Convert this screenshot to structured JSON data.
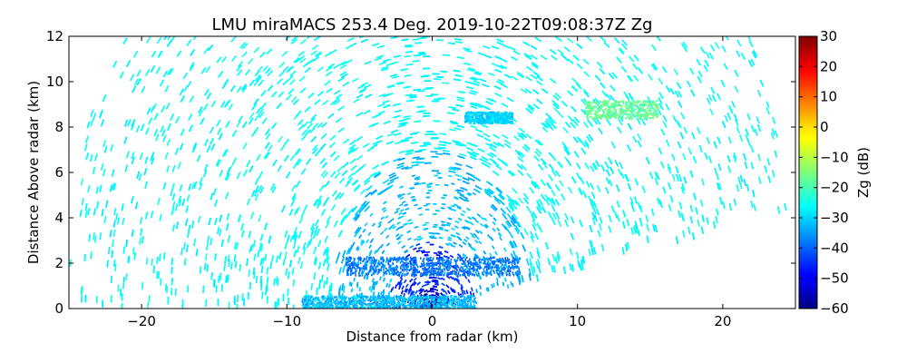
{
  "chart_data": {
    "type": "heatmap",
    "title": "LMU miraMACS 253.4 Deg. 2019-10-22T09:08:37Z  Zg",
    "xlabel": "Distance from radar (km)",
    "ylabel": "Distance Above radar  (km)",
    "colorbar_label": "Zg (dB)",
    "xlim": [
      -25,
      25
    ],
    "ylim": [
      0,
      12
    ],
    "clim": [
      -60,
      30
    ],
    "xticks": [
      -20,
      -10,
      0,
      10,
      20
    ],
    "yticks": [
      0,
      2,
      4,
      6,
      8,
      10,
      12
    ],
    "cticks": [
      -60,
      -50,
      -40,
      -30,
      -20,
      -10,
      0,
      10,
      20,
      30
    ],
    "colormap": "jet",
    "scan_azimuth_deg": 253.4,
    "scan_left_lower_edge_elevation_deg": 90,
    "scan_right_lower_edge_elevation_deg": 10,
    "max_range_km": 25,
    "features": [
      {
        "name": "background noise",
        "region": "far field",
        "zg_db": -26
      },
      {
        "name": "near-radar noise",
        "region": "within 3 km of radar",
        "zg_db": -45
      },
      {
        "name": "near-radar core",
        "region": "within 1 km of radar",
        "zg_db": -55
      },
      {
        "name": "echo near 12 km",
        "x_km": [
          10.5,
          15.5
        ],
        "y_km": [
          8.4,
          9.2
        ],
        "zg_db": -17
      },
      {
        "name": "echo near 4 km",
        "x_km": [
          2.2,
          5.5
        ],
        "y_km": [
          8.2,
          8.7
        ],
        "zg_db": -30
      },
      {
        "name": "layer near 2 km",
        "x_km": [
          -6,
          6
        ],
        "y_km": [
          1.5,
          2.3
        ],
        "zg_db": -38
      }
    ]
  }
}
